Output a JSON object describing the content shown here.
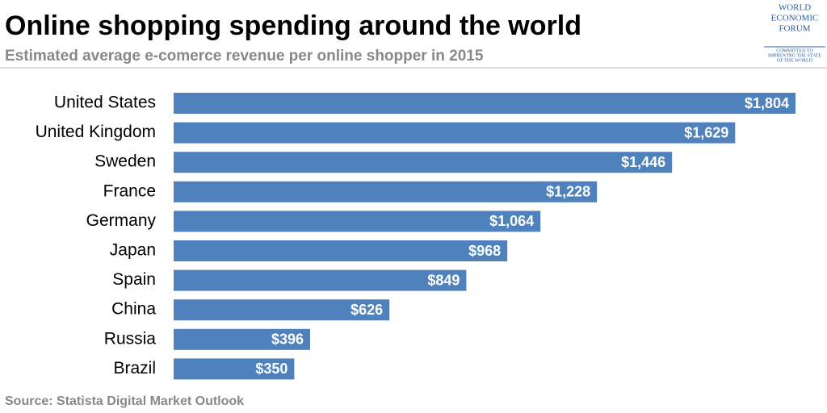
{
  "chart_data": {
    "type": "bar",
    "orientation": "horizontal",
    "title": "Online shopping spending around the world",
    "subtitle": "Estimated average e-comerce revenue per online shopper in 2015",
    "source": "Source: Statista Digital Market Outlook",
    "logo": {
      "lines": [
        "WORLD",
        "ECONOMIC",
        "FORUM"
      ],
      "tagline": [
        "COMMITTED TO",
        "IMPROVING THE STATE",
        "OF THE WORLD"
      ]
    },
    "categories": [
      "United States",
      "United Kingdom",
      "Sweden",
      "France",
      "Germany",
      "Japan",
      "Spain",
      "China",
      "Russia",
      "Brazil"
    ],
    "values": [
      1804,
      1629,
      1446,
      1228,
      1064,
      968,
      849,
      626,
      396,
      350
    ],
    "value_labels": [
      "$1,804",
      "$1,629",
      "$1,446",
      "$1,228",
      "$1,064",
      "$968",
      "$849",
      "$626",
      "$396",
      "$350"
    ],
    "color": "#4f81bd"
  }
}
